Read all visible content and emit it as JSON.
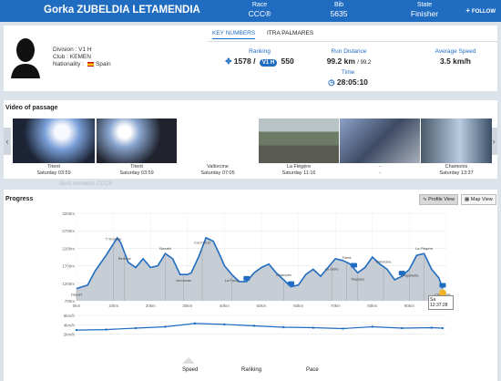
{
  "header": {
    "runner_name": "Gorka ZUBELDIA LETAMENDIA",
    "race_label": "Race",
    "race_value": "CCC®",
    "bib_label": "Bib",
    "bib_value": "5635",
    "state_label": "State",
    "state_value": "Finisher",
    "follow_label": "FOLLOW"
  },
  "profile": {
    "division": "Division : V1 H",
    "club": "Club : KEMEN",
    "nationality_label": "Nationality :",
    "nationality_value": "Spain"
  },
  "tabs": [
    {
      "label": "KEY NUMBERS",
      "active": true
    },
    {
      "label": "ITRA PALMARES",
      "active": false
    }
  ],
  "stats": {
    "ranking_label": "Ranking",
    "ranking_overall": "1578",
    "ranking_sep": "/",
    "ranking_category": "V1 H",
    "ranking_category_value": "550",
    "distance_label": "Run Distance",
    "distance_value": "99.2 km",
    "distance_total": "/ 99.2",
    "speed_label": "Average Speed",
    "speed_value": "3.5 km/h",
    "time_label": "Time",
    "time_value": "28:05:10"
  },
  "video_section": {
    "title": "Video of passage",
    "items": [
      {
        "place": "Trient",
        "time": "Saturday 03:59"
      },
      {
        "place": "Trient",
        "time": "Saturday 03:59"
      },
      {
        "place": "Vallorcine",
        "time": "Saturday 07:05"
      },
      {
        "place": "La Flégère",
        "time": "Saturday 11:16"
      },
      {
        "place": "-",
        "time": "-"
      },
      {
        "place": "Chamonix",
        "time": "Saturday 13:37"
      }
    ],
    "prev_label": "‹",
    "next_label": "›"
  },
  "progress": {
    "title": "Progress",
    "faded_label": "Best moments CCC®",
    "profile_view_label": "Profile View",
    "map_view_label": "Map View",
    "finish_marker": "Sa\n12:37:28"
  },
  "chart_data": [
    {
      "type": "area",
      "title": "",
      "xlabel": "",
      "ylabel": "",
      "x_ticks": [
        "0km",
        "10km",
        "20km",
        "30km",
        "40km",
        "50km",
        "60km",
        "70km",
        "80km",
        "90km",
        "100km"
      ],
      "y_ticks": [
        "700m",
        "1200m",
        "1700m",
        "2200m",
        "2700m",
        "3200m"
      ],
      "xlim": [
        0,
        100
      ],
      "ylim": [
        700,
        3200
      ],
      "grid": true,
      "x": [
        0,
        3,
        5,
        8,
        11,
        12,
        14,
        16,
        18,
        20,
        22,
        24,
        26,
        28,
        30,
        31,
        33,
        35,
        37,
        39,
        40,
        42,
        44,
        46,
        48,
        50,
        52,
        54,
        56,
        58,
        60,
        62,
        64,
        66,
        68,
        70,
        72,
        74,
        76,
        78,
        80,
        82,
        84,
        86,
        88,
        90,
        92,
        94,
        96,
        98,
        99
      ],
      "y": [
        1050,
        1150,
        1550,
        2000,
        2500,
        2350,
        1800,
        1650,
        1900,
        1650,
        1700,
        2050,
        1900,
        1450,
        1450,
        1500,
        1950,
        2500,
        2400,
        1950,
        1700,
        1450,
        1250,
        1250,
        1500,
        1650,
        1750,
        1500,
        1300,
        1100,
        1150,
        1450,
        1600,
        1400,
        1650,
        1900,
        1850,
        1750,
        1500,
        1650,
        1950,
        1750,
        1600,
        1300,
        1400,
        1600,
        2000,
        2050,
        1600,
        1350,
        1050
      ],
      "annotations": [
        {
          "label": "Départ",
          "x": 0
        },
        {
          "label": "T.Tronche",
          "x": 10
        },
        {
          "label": "Bertone",
          "x": 13
        },
        {
          "label": "Bonatti",
          "x": 24
        },
        {
          "label": "Arnouvaz",
          "x": 29
        },
        {
          "label": "Col Ferret",
          "x": 34
        },
        {
          "label": "La Fouly",
          "x": 42
        },
        {
          "label": "Champex",
          "x": 56
        },
        {
          "label": "La Giète",
          "x": 69
        },
        {
          "label": "Trient",
          "x": 73
        },
        {
          "label": "Tseppes",
          "x": 76
        },
        {
          "label": "Vallorcine",
          "x": 83
        },
        {
          "label": "T.Aiguillette",
          "x": 90
        },
        {
          "label": "La Flégère",
          "x": 94
        },
        {
          "label": "Chamonix",
          "x": 99
        }
      ]
    },
    {
      "type": "line",
      "title": "",
      "y_ticks": [
        "2km/h",
        "4km/h",
        "6km/h"
      ],
      "ylim": [
        0,
        7
      ],
      "x": [
        0,
        8,
        16,
        24,
        32,
        40,
        48,
        56,
        64,
        72,
        80,
        88,
        96,
        99
      ],
      "y": [
        2.9,
        3.0,
        3.3,
        3.6,
        4.3,
        4.1,
        3.8,
        3.5,
        3.4,
        3.2,
        3.6,
        3.3,
        3.4,
        3.3
      ]
    }
  ],
  "bottom_tabs": [
    "Speed",
    "Ranking",
    "Pace"
  ],
  "colors": {
    "accent": "#1f6cc1",
    "header_bg": "#1f6cc1",
    "elevation_fill": "#c7cdd4",
    "line": "#1f6cc1"
  }
}
